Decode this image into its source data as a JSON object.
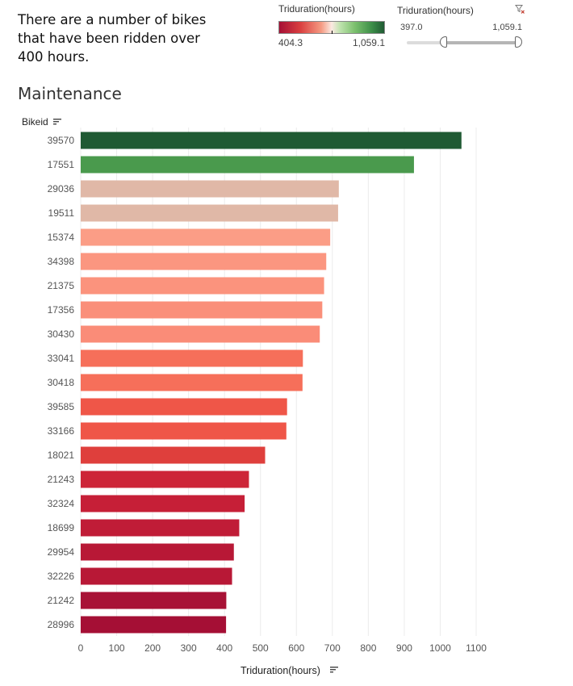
{
  "headline": {
    "lines": [
      "There are a number of bikes",
      "that have been ridden over",
      "400 hours."
    ]
  },
  "color_legend": {
    "title": "Triduration(hours)",
    "min_label": "404.3",
    "max_label": "1,059.1",
    "colors": {
      "low": "#a50f35",
      "mid": "#fbe9e2",
      "high": "#1f5a33"
    }
  },
  "range_filter": {
    "title": "Triduration(hours)",
    "min_label": "397.0",
    "max_label": "1,059.1",
    "icon": "clear-filter-icon"
  },
  "section": {
    "title": "Maintenance"
  },
  "chart_data": {
    "type": "bar",
    "orientation": "horizontal",
    "title": "",
    "ylabel": "Bikeid",
    "xlabel": "Triduration(hours)",
    "xlim": [
      0,
      1100
    ],
    "xticks": [
      0,
      100,
      200,
      300,
      400,
      500,
      600,
      700,
      800,
      900,
      1000,
      1100
    ],
    "grid": true,
    "categories": [
      "39570",
      "17551",
      "29036",
      "19511",
      "15374",
      "34398",
      "21375",
      "17356",
      "30430",
      "33041",
      "30418",
      "39585",
      "33166",
      "18021",
      "21243",
      "32324",
      "18699",
      "29954",
      "32226",
      "21242",
      "28996"
    ],
    "values": [
      1059.1,
      927,
      718,
      716,
      694,
      683,
      677,
      672,
      665,
      618,
      617,
      574,
      572,
      513,
      468,
      456,
      441,
      426,
      421,
      405,
      404.3
    ],
    "colors": [
      "#1f5a33",
      "#4a9a4d",
      "#e0b8a7",
      "#e0b8a7",
      "#fb9d86",
      "#fb9680",
      "#fb937d",
      "#fa8f7a",
      "#fa8c78",
      "#f66f5a",
      "#f66f5a",
      "#ef5648",
      "#ef5648",
      "#df3f3c",
      "#cd2538",
      "#c61f37",
      "#c01c37",
      "#b81836",
      "#b81836",
      "#a81236",
      "#a50f35"
    ]
  }
}
